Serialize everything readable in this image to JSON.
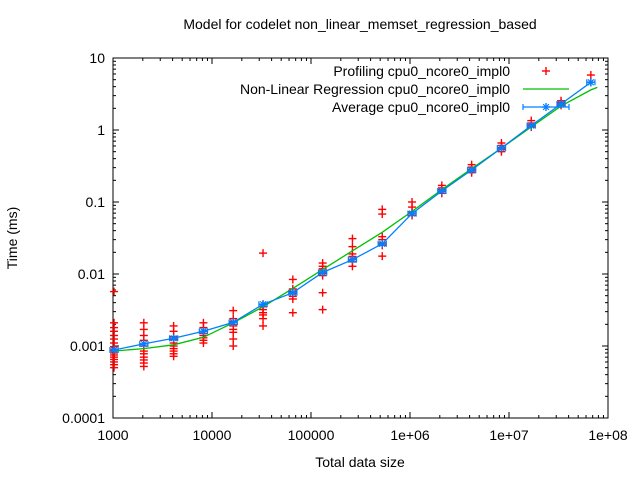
{
  "chart_data": {
    "type": "scatter",
    "scale": "log-log",
    "title": "Model for codelet non_linear_memset_regression_based",
    "xlabel": "Total data size",
    "ylabel": "Time (ms)",
    "xlim": [
      1000,
      100000000
    ],
    "ylim": [
      0.0001,
      10
    ],
    "grid": false,
    "legend_position": "top-right-inside",
    "x_ticks": [
      {
        "value": 1000,
        "label": "1000"
      },
      {
        "value": 10000,
        "label": "10000"
      },
      {
        "value": 100000,
        "label": "100000"
      },
      {
        "value": 1000000,
        "label": "1e+06"
      },
      {
        "value": 10000000,
        "label": "1e+07"
      },
      {
        "value": 100000000,
        "label": "1e+08"
      }
    ],
    "y_ticks": [
      {
        "value": 0.0001,
        "label": "0.0001"
      },
      {
        "value": 0.001,
        "label": "0.001"
      },
      {
        "value": 0.01,
        "label": "0.01"
      },
      {
        "value": 0.1,
        "label": "0.1"
      },
      {
        "value": 1,
        "label": "1"
      },
      {
        "value": 10,
        "label": "10"
      }
    ],
    "colors": {
      "profiling": "#ff0000",
      "regression": "#00c000",
      "average": "#0080ff",
      "axis": "#000000"
    },
    "series": [
      {
        "name": "Profiling cpu0_ncore0_impl0",
        "type": "scatter",
        "marker": "plus",
        "color": "#ff0000",
        "groups": [
          {
            "x": 1024,
            "values": [
              0.0057,
              0.0021,
              0.0018,
              0.0016,
              0.0014,
              0.00125,
              0.0011,
              0.00098,
              0.0009,
              0.00085,
              0.0008,
              0.00075,
              0.0007,
              0.00065,
              0.0006,
              0.00055,
              0.0005
            ]
          },
          {
            "x": 2048,
            "values": [
              0.0021,
              0.0017,
              0.0014,
              0.0012,
              0.001,
              0.00085,
              0.00078,
              0.0007,
              0.00064,
              0.00058,
              0.00052
            ]
          },
          {
            "x": 4096,
            "values": [
              0.0019,
              0.0016,
              0.00135,
              0.00122,
              0.0011,
              0.001,
              0.00092,
              0.00085,
              0.00078,
              0.00072
            ]
          },
          {
            "x": 8192,
            "values": [
              0.0021,
              0.0018,
              0.0016,
              0.0015,
              0.0014,
              0.0013,
              0.0012,
              0.0011
            ]
          },
          {
            "x": 16384,
            "values": [
              0.0031,
              0.0024,
              0.0022,
              0.002,
              0.0019,
              0.0017,
              0.00155,
              0.00125,
              0.001
            ]
          },
          {
            "x": 32768,
            "values": [
              0.0195,
              0.0038,
              0.0035,
              0.0032,
              0.0029,
              0.0027,
              0.0024,
              0.0019
            ]
          },
          {
            "x": 65536,
            "values": [
              0.0084,
              0.0062,
              0.0057,
              0.0053,
              0.0049,
              0.0045,
              0.0029
            ]
          },
          {
            "x": 131072,
            "values": [
              0.0142,
              0.0128,
              0.0118,
              0.011,
              0.0102,
              0.0095,
              0.0055,
              0.0032
            ]
          },
          {
            "x": 262144,
            "values": [
              0.031,
              0.024,
              0.019,
              0.0175,
              0.016,
              0.0148,
              0.0128
            ]
          },
          {
            "x": 524288,
            "values": [
              0.079,
              0.068,
              0.033,
              0.03,
              0.027,
              0.025,
              0.0177
            ]
          },
          {
            "x": 1048576,
            "values": [
              0.1,
              0.085,
              0.073,
              0.069,
              0.065
            ]
          },
          {
            "x": 2097152,
            "values": [
              0.17,
              0.157,
              0.148,
              0.14,
              0.132
            ]
          },
          {
            "x": 4194304,
            "values": [
              0.33,
              0.305,
              0.285,
              0.27,
              0.255
            ]
          },
          {
            "x": 8388608,
            "values": [
              0.66,
              0.61,
              0.57,
              0.54,
              0.5
            ]
          },
          {
            "x": 16777216,
            "values": [
              1.35,
              1.25,
              1.18,
              1.1
            ]
          },
          {
            "x": 33554432,
            "values": [
              2.55,
              2.4,
              2.3,
              2.2
            ]
          },
          {
            "x": 67108864,
            "values": [
              5.8,
              4.6
            ]
          }
        ]
      },
      {
        "name": "Non-Linear Regression cpu0_ncore0_impl0",
        "type": "line",
        "color": "#00c000",
        "points": [
          [
            1000,
            0.00085
          ],
          [
            2048,
            0.00092
          ],
          [
            4096,
            0.00104
          ],
          [
            8192,
            0.00132
          ],
          [
            16384,
            0.0021
          ],
          [
            32768,
            0.0035
          ],
          [
            65536,
            0.0063
          ],
          [
            131072,
            0.0115
          ],
          [
            262144,
            0.021
          ],
          [
            524288,
            0.038
          ],
          [
            1048576,
            0.074
          ],
          [
            2097152,
            0.148
          ],
          [
            4194304,
            0.29
          ],
          [
            8388608,
            0.56
          ],
          [
            16777216,
            1.1
          ],
          [
            33554432,
            2.15
          ],
          [
            67108864,
            3.6
          ],
          [
            78000000,
            3.9
          ]
        ]
      },
      {
        "name": "Average cpu0_ncore0_impl0",
        "type": "linespoints-xerrorbars",
        "marker": "asterisk",
        "color": "#0080ff",
        "xerr_factor": 1.1,
        "points": [
          [
            1024,
            0.00088
          ],
          [
            2048,
            0.00107
          ],
          [
            4096,
            0.00128
          ],
          [
            8192,
            0.0016
          ],
          [
            16384,
            0.00213
          ],
          [
            32768,
            0.0038
          ],
          [
            65536,
            0.0055
          ],
          [
            131072,
            0.0105
          ],
          [
            262144,
            0.0158
          ],
          [
            524288,
            0.0263
          ],
          [
            1048576,
            0.069
          ],
          [
            2097152,
            0.142
          ],
          [
            4194304,
            0.278
          ],
          [
            8388608,
            0.56
          ],
          [
            16777216,
            1.15
          ],
          [
            33554432,
            2.3
          ],
          [
            67108864,
            4.6
          ]
        ]
      }
    ]
  }
}
